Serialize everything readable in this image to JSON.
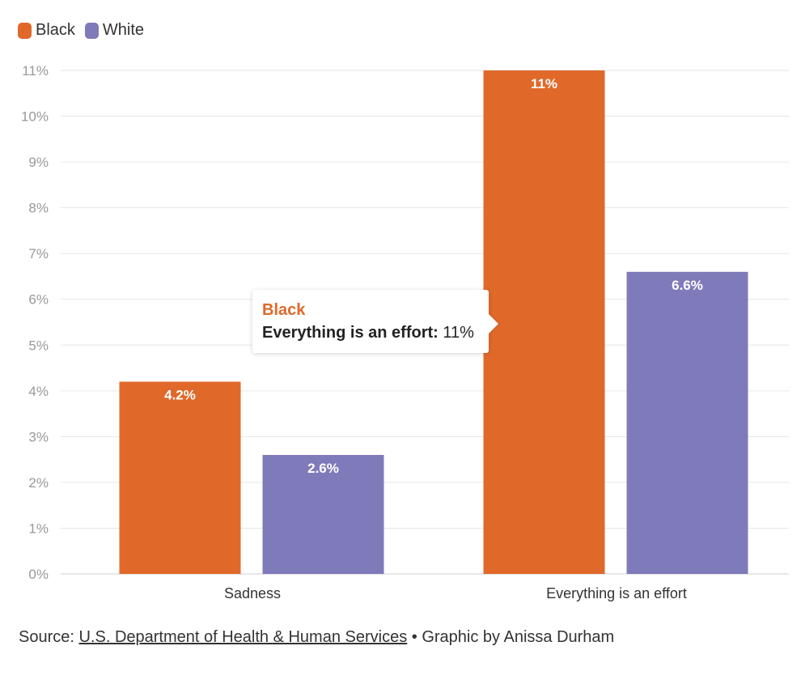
{
  "chart_data": {
    "type": "bar",
    "title": "",
    "categories": [
      "Sadness",
      "Everything is an effort"
    ],
    "series": [
      {
        "name": "Black",
        "color": "#E0692A",
        "values": [
          4.2,
          11
        ],
        "labels": [
          "4.2%",
          "11%"
        ]
      },
      {
        "name": "White",
        "color": "#7F7BBA",
        "values": [
          2.6,
          6.6
        ],
        "labels": [
          "2.6%",
          "6.6%"
        ]
      }
    ],
    "xlabel": "",
    "ylabel": "",
    "ylim": [
      0,
      11
    ],
    "yticks": [
      0,
      1,
      2,
      3,
      4,
      5,
      6,
      7,
      8,
      9,
      10,
      11
    ],
    "ytick_labels": [
      "0%",
      "1%",
      "2%",
      "3%",
      "4%",
      "5%",
      "6%",
      "7%",
      "8%",
      "9%",
      "10%",
      "11%"
    ],
    "grid": true,
    "legend": "top-left"
  },
  "tooltip": {
    "series": "Black",
    "category": "Everything is an effort:",
    "value": "11%"
  },
  "source": {
    "prefix": "Source: ",
    "link_text": "U.S. Department of Health & Human Services",
    "suffix": " • Graphic by Anissa Durham"
  }
}
